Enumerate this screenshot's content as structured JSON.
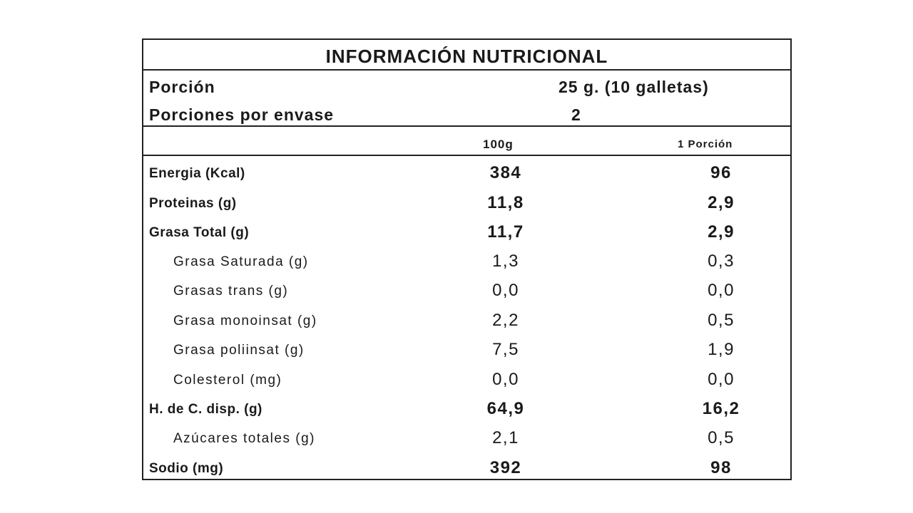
{
  "title": "INFORMACIÓN NUTRICIONAL",
  "serving": {
    "portion_label": "Porción",
    "portion_value": "25 g. (10 galletas)",
    "servings_label": "Porciones por envase",
    "servings_value": "2"
  },
  "columns": {
    "per_100g": "100g",
    "per_portion": "1 Porción"
  },
  "rows": [
    {
      "name": "Energia (Kcal)",
      "per_100g": "384",
      "per_portion": "96"
    },
    {
      "name": "Proteinas (g)",
      "per_100g": "11,8",
      "per_portion": "2,9"
    },
    {
      "name": "Grasa Total (g)",
      "per_100g": "11,7",
      "per_portion": "2,9"
    },
    {
      "name": "Grasa Saturada (g)",
      "per_100g": "1,3",
      "per_portion": "0,3"
    },
    {
      "name": "Grasas trans (g)",
      "per_100g": "0,0",
      "per_portion": "0,0"
    },
    {
      "name": "Grasa monoinsat (g)",
      "per_100g": "2,2",
      "per_portion": "0,5"
    },
    {
      "name": "Grasa poliinsat (g)",
      "per_100g": "7,5",
      "per_portion": "1,9"
    },
    {
      "name": "Colesterol (mg)",
      "per_100g": "0,0",
      "per_portion": "0,0"
    },
    {
      "name": "H. de C. disp. (g)",
      "per_100g": "64,9",
      "per_portion": "16,2"
    },
    {
      "name": "Azúcares totales (g)",
      "per_100g": "2,1",
      "per_portion": "0,5"
    },
    {
      "name": "Sodio (mg)",
      "per_100g": "392",
      "per_portion": "98"
    }
  ]
}
